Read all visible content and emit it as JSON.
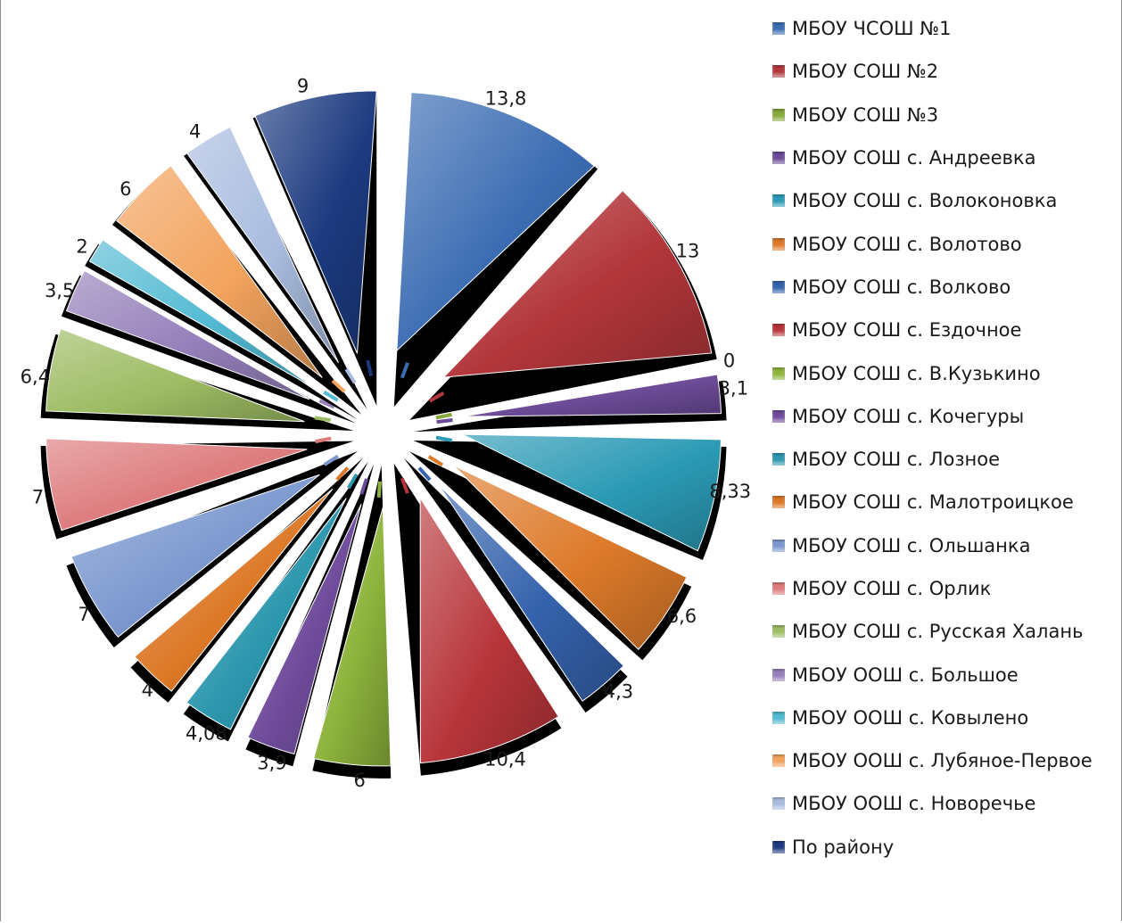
{
  "chart_data": {
    "type": "pie",
    "title": "",
    "series": [
      {
        "name": "МБОУ ЧСОШ №1",
        "value": 13.8,
        "label": "13,8",
        "color": "#3c6db3"
      },
      {
        "name": "МБОУ СОШ №2",
        "value": 13,
        "label": "13",
        "color": "#b2363a"
      },
      {
        "name": "МБОУ СОШ №3",
        "value": 0,
        "label": "0",
        "color": "#87a83a"
      },
      {
        "name": "МБОУ СОШ с. Андреевка",
        "value": 3.1,
        "label": "3,1",
        "color": "#6b4a96"
      },
      {
        "name": "МБОУ СОШ с. Волоконовка",
        "value": 8.33,
        "label": "8,33",
        "color": "#2b9ab5"
      },
      {
        "name": "МБОУ СОШ с. Волотово",
        "value": 6.6,
        "label": "6,6",
        "color": "#dd7a2a"
      },
      {
        "name": "МБОУ СОШ с. Волково",
        "value": 4.3,
        "label": "4,3",
        "color": "#3563ad"
      },
      {
        "name": "МБОУ СОШ с. Ездочное",
        "value": 10.4,
        "label": "10,4",
        "color": "#b7353a"
      },
      {
        "name": "МБОУ СОШ с. В.Кузькино",
        "value": 6,
        "label": "6",
        "color": "#8db43c"
      },
      {
        "name": "МБОУ СОШ с. Кочегуры",
        "value": 3.9,
        "label": "3,9",
        "color": "#6f4b9b"
      },
      {
        "name": "МБОУ СОШ с. Лозное",
        "value": 4.08,
        "label": "4,08",
        "color": "#2c97ae"
      },
      {
        "name": "МБОУ СОШ с. Малотроицкое",
        "value": 4,
        "label": "4",
        "color": "#dc7826"
      },
      {
        "name": "МБОУ СОШ с. Ольшанка",
        "value": 7,
        "label": "7",
        "color": "#7b98cf"
      },
      {
        "name": "МБОУ СОШ с. Орлик",
        "value": 7,
        "label": "7",
        "color": "#dd7a7c"
      },
      {
        "name": "МБОУ СОШ с. Русская Халань",
        "value": 6.4,
        "label": "6,4",
        "color": "#9dbc63"
      },
      {
        "name": "МБОУ ООШ с. Большое",
        "value": 3.5,
        "label": "3,5",
        "color": "#9580ba"
      },
      {
        "name": "МБОУ ООШ с. Ковылено",
        "value": 2,
        "label": "2",
        "color": "#52bad2"
      },
      {
        "name": "МБОУ ООШ с. Лубяное-Первое",
        "value": 6,
        "label": "6",
        "color": "#f3a35d"
      },
      {
        "name": "МБОУ ООШ с. Новоречье",
        "value": 4,
        "label": "4",
        "color": "#a9bcdf"
      },
      {
        "name": "По району",
        "value": 9,
        "label": "9",
        "color": "#1c3a80"
      }
    ],
    "legend_position": "right",
    "style": "exploded 3D pie with thin hairline second-ring slices"
  }
}
